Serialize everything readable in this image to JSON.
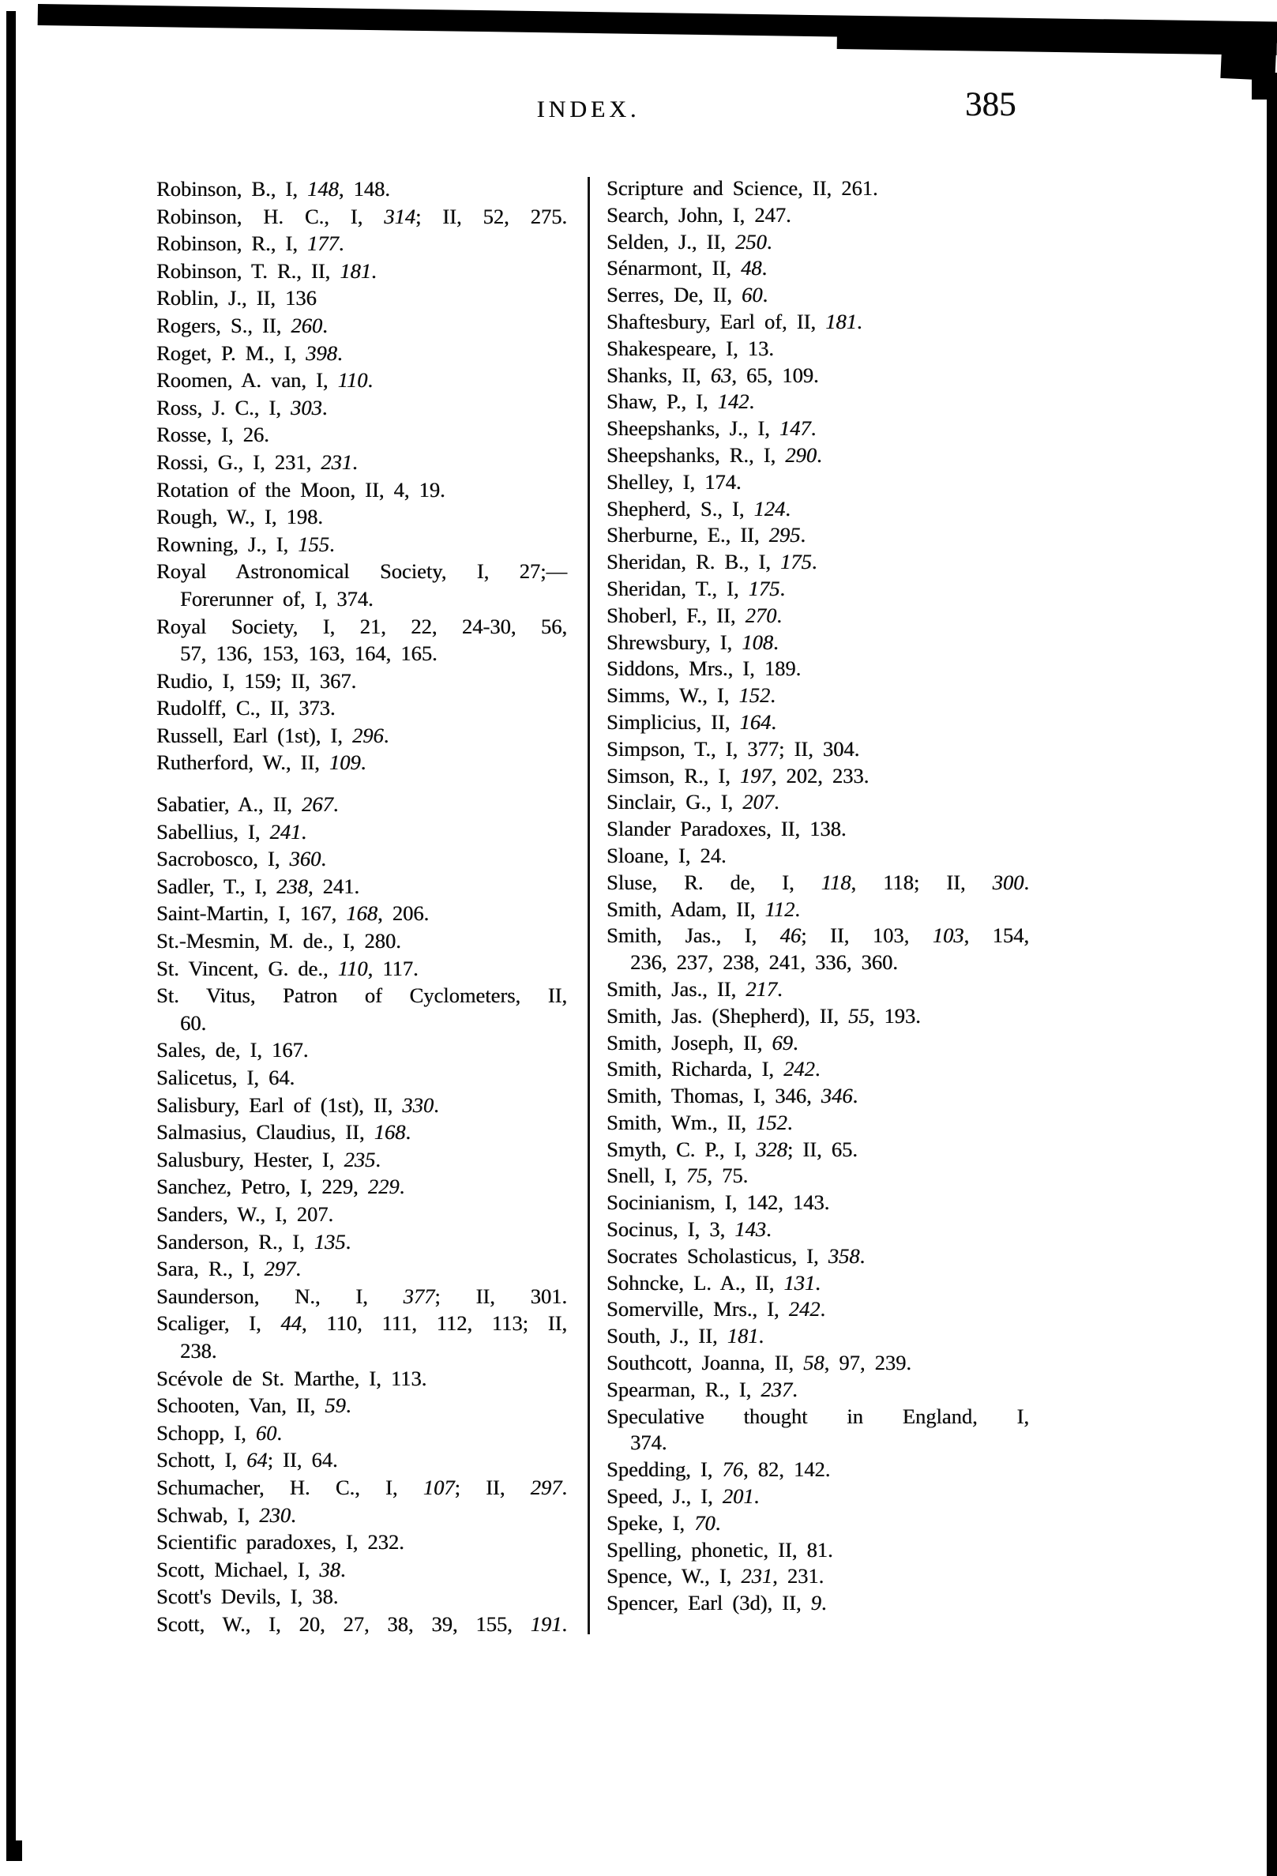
{
  "page": {
    "header_title": "INDEX.",
    "page_number": "385"
  },
  "index": {
    "left_column": {
      "lines": [
        {
          "t": "Robinson, B., I, *148*, 148."
        },
        {
          "t": "Robinson, H. C., I, *314*; II, 52, 275.",
          "j": 1
        },
        {
          "t": "Robinson, R., I, *177*."
        },
        {
          "t": "Robinson, T. R., II, *181*."
        },
        {
          "t": "Roblin, J., II, 136"
        },
        {
          "t": "Rogers, S., II, *260*."
        },
        {
          "t": "Roget, P. M., I, *398*."
        },
        {
          "t": "Roomen, A. van, I, *110*."
        },
        {
          "t": "Ross, J. C., I, *303*."
        },
        {
          "t": "Rosse, I, 26."
        },
        {
          "t": "Rossi, G., I, 231, *231*."
        },
        {
          "t": "Rotation of the Moon, II, 4, 19."
        },
        {
          "t": "Rough, W., I, 198."
        },
        {
          "t": "Rowning, J., I, *155*."
        },
        {
          "t": "Royal Astronomical Society, I, 27;—",
          "j": 1
        },
        {
          "t": "Forerunner of, I, 374.",
          "in": 1
        },
        {
          "t": "Royal Society, I, 21, 22, 24-30, 56,",
          "j": 1
        },
        {
          "t": "57, 136, 153, 163, 164, 165.",
          "in": 1
        },
        {
          "t": "Rudio, I, 159; II, 367."
        },
        {
          "t": "Rudolff, C., II, 373."
        },
        {
          "t": "Russell, Earl (1st), I, *296*."
        },
        {
          "t": "Rutherford, W., II, *109*."
        },
        {
          "g": 1
        },
        {
          "t": "Sabatier, A., II, *267*."
        },
        {
          "t": "Sabellius, I, *241*."
        },
        {
          "t": "Sacrobosco, I, *360*."
        },
        {
          "t": "Sadler, T., I, *238*, 241."
        },
        {
          "t": "Saint-Martin, I, 167, *168*, 206."
        },
        {
          "t": "St.-Mesmin, M. de., I, 280."
        },
        {
          "t": "St. Vincent, G. de., *110*, 117."
        },
        {
          "t": "St. Vitus, Patron of Cyclometers, II,",
          "j": 1
        },
        {
          "t": "60.",
          "in": 1
        },
        {
          "t": "Sales, de, I, 167."
        },
        {
          "t": "Salicetus, I, 64."
        },
        {
          "t": "Salisbury, Earl of (1st), II, *330*."
        },
        {
          "t": "Salmasius, Claudius, II, *168*."
        },
        {
          "t": "Salusbury, Hester, I, *235*."
        },
        {
          "t": "Sanchez, Petro, I, 229, *229*."
        },
        {
          "t": "Sanders, W., I, 207."
        },
        {
          "t": "Sanderson, R., I, *135*."
        },
        {
          "t": "Sara, R., I, *297*."
        },
        {
          "t": "Saunderson, N., I, *377*; II, 301.",
          "j": 1
        },
        {
          "t": "Scaliger, I, *44*, 110, 111, 112, 113; II,",
          "j": 1
        },
        {
          "t": "238.",
          "in": 1
        },
        {
          "t": "Scévole de St. Marthe, I, 113."
        },
        {
          "t": "Schooten, Van, II, *59*."
        },
        {
          "t": "Schopp, I, *60*."
        },
        {
          "t": "Schott, I, *64*; II, 64."
        },
        {
          "t": "Schumacher, H. C., I, *107*; II, *297*.",
          "j": 1
        },
        {
          "t": "Schwab, I, *230*."
        },
        {
          "t": "Scientific paradoxes, I, 232."
        },
        {
          "t": "Scott, Michael, I, *38*."
        },
        {
          "t": "Scott's Devils, I, 38."
        },
        {
          "t": "Scott, W., I, 20, 27, 38, 39, 155, *191*.",
          "j": 1
        }
      ]
    },
    "right_column": {
      "lines": [
        {
          "t": "Scripture and Science, II, 261."
        },
        {
          "t": "Search, John, I, 247."
        },
        {
          "t": "Selden, J., II, *250*."
        },
        {
          "t": "Sénarmont, II, *48*."
        },
        {
          "t": "Serres, De, II, *60*."
        },
        {
          "t": "Shaftesbury, Earl of, II, *181*."
        },
        {
          "t": "Shakespeare, I, 13."
        },
        {
          "t": "Shanks, II, *63*, 65, 109."
        },
        {
          "t": "Shaw, P., I, *142*."
        },
        {
          "t": "Sheepshanks, J., I, *147*."
        },
        {
          "t": "Sheepshanks, R., I, *290*."
        },
        {
          "t": "Shelley, I, 174."
        },
        {
          "t": "Shepherd, S., I, *124*."
        },
        {
          "t": "Sherburne, E., II, *295*."
        },
        {
          "t": "Sheridan, R. B., I, *175*."
        },
        {
          "t": "Sheridan, T., I, *175*."
        },
        {
          "t": "Shoberl, F., II, *270*."
        },
        {
          "t": "Shrewsbury, I, *108*."
        },
        {
          "t": "Siddons, Mrs., I, 189."
        },
        {
          "t": "Simms, W., I, *152*."
        },
        {
          "t": "Simplicius, II, *164*."
        },
        {
          "t": "Simpson, T., I, 377; II, 304."
        },
        {
          "t": "Simson, R., I, *197*, 202, 233."
        },
        {
          "t": "Sinclair, G., I, *207*."
        },
        {
          "t": "Slander Paradoxes, II, 138."
        },
        {
          "t": "Sloane, I, 24."
        },
        {
          "t": "Sluse, R. de, I, *118*, 118; II, *300*.",
          "j": 1
        },
        {
          "t": "Smith, Adam, II, *112*."
        },
        {
          "t": "Smith, Jas., I, *46*; II, 103, *103*, 154,",
          "j": 1
        },
        {
          "t": "236, 237, 238, 241, 336, 360.",
          "in": 1
        },
        {
          "t": "Smith, Jas., II, *217*."
        },
        {
          "t": "Smith, Jas. (Shepherd), II, *55*, 193."
        },
        {
          "t": "Smith, Joseph, II, *69*."
        },
        {
          "t": "Smith, Richarda, I, *242*."
        },
        {
          "t": "Smith, Thomas, I, 346, *346*."
        },
        {
          "t": "Smith, Wm., II, *152*."
        },
        {
          "t": "Smyth, C. P., I, *328*; II, 65."
        },
        {
          "t": "Snell, I, *75*, 75."
        },
        {
          "t": "Socinianism, I, 142, 143."
        },
        {
          "t": "Socinus, I, 3, *143*."
        },
        {
          "t": "Socrates Scholasticus, I, *358*."
        },
        {
          "t": "Sohncke, L. A., II, *131*."
        },
        {
          "t": "Somerville, Mrs., I, *242*."
        },
        {
          "t": "South, J., II, *181*."
        },
        {
          "t": "Southcott, Joanna, II, *58*, 97, 239."
        },
        {
          "t": "Spearman, R., I, *237*."
        },
        {
          "t": "Speculative thought in England, I,",
          "j": 1
        },
        {
          "t": "374.",
          "in": 1
        },
        {
          "t": "Spedding, I, *76*, 82, 142."
        },
        {
          "t": "Speed, J., I, *201*."
        },
        {
          "t": "Speke, I, *70*."
        },
        {
          "t": "Spelling, phonetic, II, 81."
        },
        {
          "t": "Spence, W., I, *231*, 231."
        },
        {
          "t": "Spencer, Earl (3d), II, *9*."
        }
      ]
    }
  }
}
